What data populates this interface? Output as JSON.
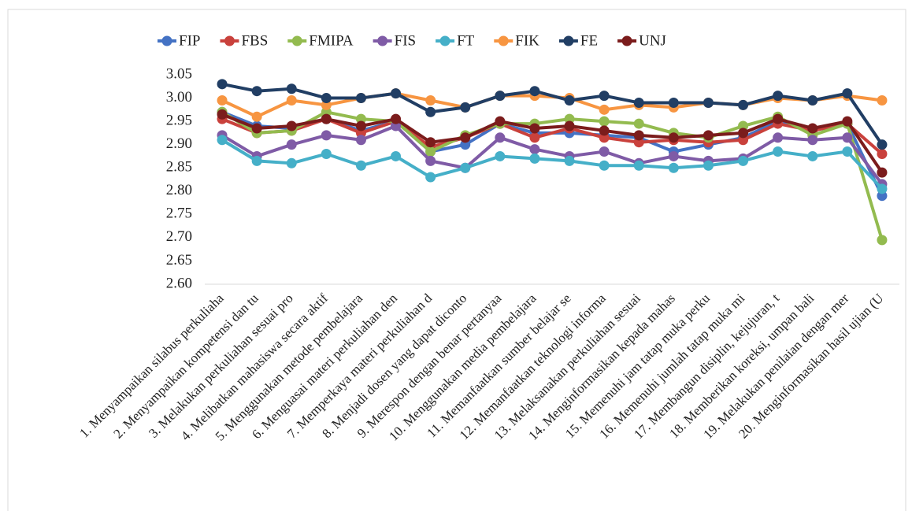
{
  "chart_data": {
    "type": "line",
    "categories": [
      "1. Menyampaikan silabus perkuliaha",
      "2. Menyampaikan kompetensi dan tu",
      "3. Melakukan perkuliahan sesuai pro",
      "4. Melibatkan mahasiswa secara aktif",
      "5. Menggunakan metode pembelajara",
      "6. Menguasai materi perkuliahan den",
      "7. Memperkaya materi perkuliahan d",
      "8. Menjadi dosen yang dapat diconto",
      "9. Merespon dengan benar pertanyaa",
      "10. Menggunakan media pembelajara",
      "11. Memanfaatkan sumber belajar se",
      "12. Memanfaatkan teknologi informa",
      "13. Melaksanakan perkuliahan sesuai",
      "14. Menginformasikan kepada mahas",
      "15. Memenuhi jam tatap muka perku",
      "16. Memenuhi jumlah tatap muka mi",
      "17. Membangun disiplin, kejujuran, t",
      "18. Memberikan koreksi, umpan bali",
      "19. Melakukan penilaian dengan mer",
      "20. Menginformasikan hasil ujian (U"
    ],
    "series": [
      {
        "name": "FIP",
        "color": "#4472c4",
        "values": [
          2.97,
          2.94,
          2.935,
          2.955,
          2.93,
          2.95,
          2.885,
          2.9,
          2.945,
          2.925,
          2.925,
          2.92,
          2.915,
          2.885,
          2.9,
          2.915,
          2.95,
          2.93,
          2.945,
          2.79
        ]
      },
      {
        "name": "FBS",
        "color": "#c9413c",
        "values": [
          2.955,
          2.925,
          2.93,
          2.955,
          2.925,
          2.95,
          2.895,
          2.915,
          2.945,
          2.915,
          2.935,
          2.915,
          2.905,
          2.91,
          2.905,
          2.91,
          2.945,
          2.93,
          2.945,
          2.88
        ]
      },
      {
        "name": "FMIPA",
        "color": "#93bb4f",
        "values": [
          2.97,
          2.925,
          2.93,
          2.97,
          2.955,
          2.95,
          2.885,
          2.92,
          2.945,
          2.945,
          2.955,
          2.95,
          2.945,
          2.925,
          2.915,
          2.94,
          2.96,
          2.92,
          2.945,
          2.695
        ]
      },
      {
        "name": "FIS",
        "color": "#7f5ba6",
        "values": [
          2.92,
          2.875,
          2.9,
          2.92,
          2.91,
          2.94,
          2.865,
          2.85,
          2.915,
          2.89,
          2.875,
          2.885,
          2.86,
          2.875,
          2.865,
          2.87,
          2.915,
          2.91,
          2.915,
          2.815
        ]
      },
      {
        "name": "FT",
        "color": "#45afc8",
        "values": [
          2.91,
          2.865,
          2.86,
          2.88,
          2.855,
          2.875,
          2.83,
          2.85,
          2.875,
          2.87,
          2.865,
          2.855,
          2.855,
          2.85,
          2.855,
          2.865,
          2.885,
          2.875,
          2.885,
          2.805
        ]
      },
      {
        "name": "FIK",
        "color": "#f79541",
        "values": [
          2.995,
          2.96,
          2.995,
          2.985,
          3.0,
          3.01,
          2.995,
          2.98,
          3.005,
          3.005,
          3.0,
          2.975,
          2.985,
          2.98,
          2.99,
          2.985,
          3.0,
          2.995,
          3.005,
          2.995
        ]
      },
      {
        "name": "FE",
        "color": "#213e64",
        "values": [
          3.03,
          3.015,
          3.02,
          3.0,
          3.0,
          3.01,
          2.97,
          2.98,
          3.005,
          3.015,
          2.995,
          3.005,
          2.99,
          2.99,
          2.99,
          2.985,
          3.005,
          2.995,
          3.01,
          2.9
        ]
      },
      {
        "name": "UNJ",
        "color": "#7b1c1c",
        "values": [
          2.965,
          2.935,
          2.94,
          2.955,
          2.94,
          2.955,
          2.905,
          2.915,
          2.95,
          2.935,
          2.94,
          2.93,
          2.92,
          2.915,
          2.92,
          2.925,
          2.955,
          2.935,
          2.95,
          2.84
        ]
      }
    ],
    "ylim": [
      2.6,
      3.05
    ],
    "yticks": [
      {
        "value": 2.6,
        "label": "2.60"
      },
      2.65,
      {
        "value": 2.7,
        "label": "2.70"
      },
      2.75,
      {
        "value": 2.8,
        "label": "2.80"
      },
      2.85,
      {
        "value": 2.9,
        "label": "2.90"
      },
      2.95,
      {
        "value": 3.0,
        "label": "3.00"
      },
      3.05
    ],
    "legend": "top"
  }
}
